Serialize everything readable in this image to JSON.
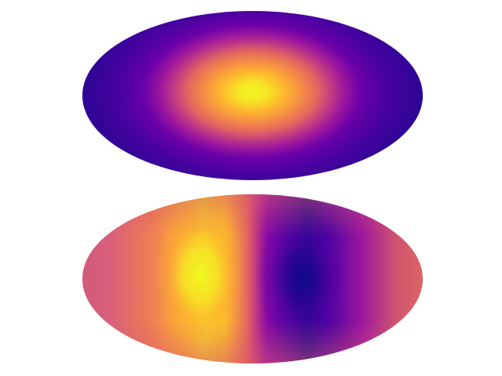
{
  "figure": {
    "colormap": "plasma",
    "background": "#ffffff",
    "projection": "mollweide",
    "maps": [
      {
        "id": "map-top",
        "pattern": "single-peak",
        "peak_color": "#f0f921",
        "edge_color": "#2f0596"
      },
      {
        "id": "map-bottom",
        "pattern": "dipole",
        "max_color": "#f0f921",
        "min_color": "#0d0887",
        "mid_color": "#cc4778"
      }
    ]
  }
}
